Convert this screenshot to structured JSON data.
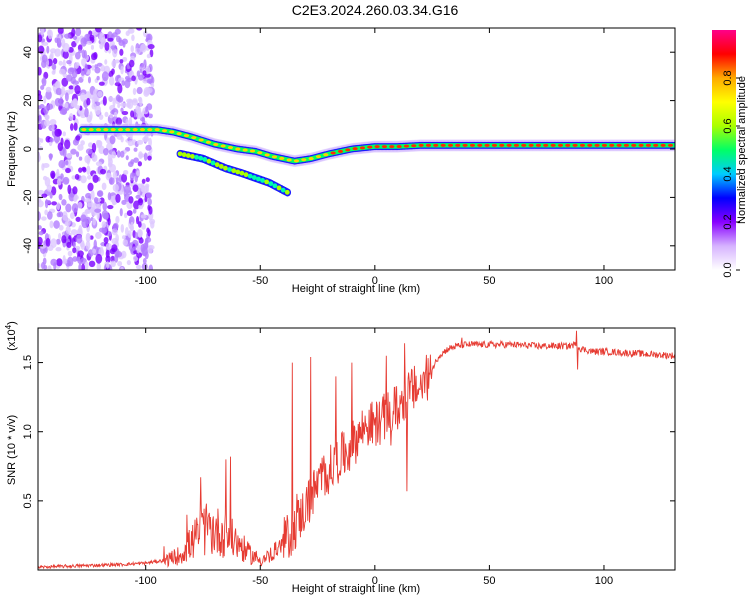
{
  "title": "C2E3.2024.260.03.34.G16",
  "chart_data": [
    {
      "type": "heatmap",
      "xlabel": "Height of straight line (km)",
      "ylabel": "Frequency (Hz)",
      "xlim": [
        -147,
        131
      ],
      "ylim": [
        -50,
        50
      ],
      "x_ticks": [
        -100,
        -50,
        0,
        50,
        100
      ],
      "y_ticks": [
        -40,
        -20,
        0,
        20,
        40
      ],
      "colorbar": {
        "label": "Normalized spectral amplitude",
        "range": [
          0,
          1
        ],
        "ticks": [
          0.0,
          0.2,
          0.4,
          0.6,
          0.8
        ],
        "colors": [
          "#ffffff",
          "#d6b3ff",
          "#8800ff",
          "#0000ff",
          "#00ccff",
          "#00ff66",
          "#aaff00",
          "#ffff00",
          "#ffaa00",
          "#ff0000",
          "#ff0088"
        ]
      },
      "main_trace": {
        "x": [
          -128,
          -110,
          -95,
          -88,
          -80,
          -70,
          -60,
          -52,
          -45,
          -40,
          -35,
          -28,
          -20,
          -10,
          0,
          10,
          20,
          40,
          60,
          80,
          100,
          131
        ],
        "y": [
          8,
          8,
          8,
          7,
          5,
          2,
          0,
          -1,
          -3,
          -4,
          -5,
          -4,
          -2,
          0,
          1,
          1,
          1.5,
          1.5,
          1.5,
          1.5,
          1.5,
          1.5
        ]
      },
      "secondary_trace": {
        "x": [
          -85,
          -75,
          -65,
          -58,
          -52,
          -46,
          -42,
          -38
        ],
        "y": [
          -2,
          -4,
          -8,
          -10,
          -12,
          -14,
          -16,
          -18
        ]
      },
      "noise_region": {
        "x": [
          -147,
          -97
        ],
        "y": [
          -50,
          50
        ]
      }
    },
    {
      "type": "line",
      "xlabel": "Height of straight line (km)",
      "ylabel": "SNR (10 * v/v)",
      "y_multiplier": "(x10",
      "y_exponent": "4",
      "y_multiplier_close": ")",
      "xlim": [
        -147,
        131
      ],
      "ylim": [
        0,
        1.75
      ],
      "x_ticks": [
        -100,
        -50,
        0,
        50,
        100
      ],
      "y_ticks": [
        0.5,
        1.0,
        1.5
      ],
      "y_tick_labels": [
        "0.5",
        "1.0",
        "1.5"
      ],
      "color": "#e63b32",
      "envelope": {
        "x": [
          -147,
          -130,
          -110,
          -100,
          -92,
          -85,
          -80,
          -75,
          -70,
          -65,
          -60,
          -55,
          -50,
          -45,
          -40,
          -36,
          -32,
          -28,
          -24,
          -20,
          -16,
          -12,
          -8,
          -4,
          0,
          4,
          8,
          12,
          16,
          20,
          24,
          28,
          32,
          36,
          40,
          50,
          60,
          70,
          80,
          85,
          87,
          90,
          95,
          100,
          110,
          120,
          131
        ],
        "y": [
          0.02,
          0.03,
          0.04,
          0.05,
          0.07,
          0.12,
          0.22,
          0.32,
          0.32,
          0.28,
          0.22,
          0.13,
          0.08,
          0.12,
          0.2,
          0.28,
          0.4,
          0.52,
          0.65,
          0.72,
          0.8,
          0.85,
          0.95,
          1.05,
          1.05,
          1.1,
          1.15,
          1.2,
          1.3,
          1.32,
          1.42,
          1.55,
          1.6,
          1.62,
          1.63,
          1.63,
          1.63,
          1.62,
          1.62,
          1.62,
          1.63,
          1.6,
          1.58,
          1.58,
          1.57,
          1.56,
          1.55
        ]
      },
      "notable_points": {
        "x": [
          -82,
          -76,
          -73,
          -65,
          -63,
          -36,
          -34,
          -28,
          -17,
          -10,
          -7,
          5,
          7,
          13,
          14,
          38,
          88,
          88.5
        ],
        "y": [
          0.4,
          0.67,
          0.25,
          0.8,
          0.82,
          1.5,
          0.55,
          1.54,
          1.4,
          1.5,
          0.92,
          1.55,
          0.9,
          1.64,
          0.57,
          1.68,
          1.73,
          1.45
        ]
      }
    }
  ]
}
